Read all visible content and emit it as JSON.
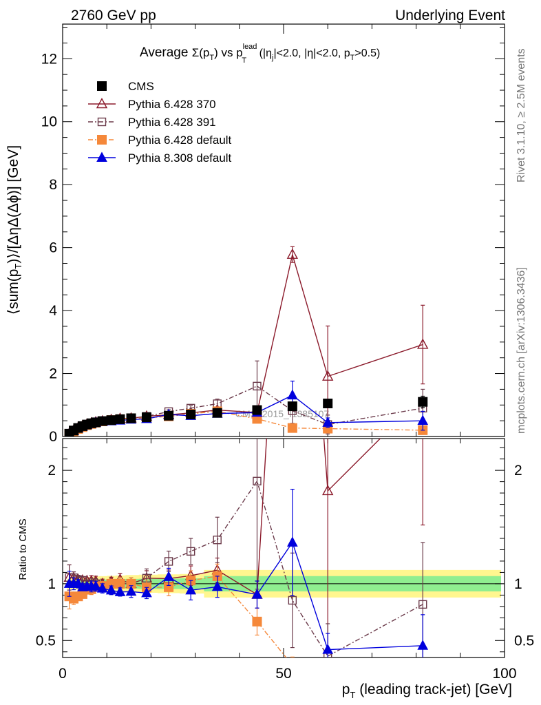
{
  "header": {
    "left": "2760 GeV pp",
    "right": "Underlying Event"
  },
  "title": {
    "prefix": "Average ",
    "sigma": "Σ(p",
    "sub_t": "T",
    "close": ") vs p",
    "sup_lead": "lead",
    "sub_t2": "T",
    "cuts1": " (|η",
    "sub_j": "j",
    "cuts2": "|<2.0, |η|<2.0, p",
    "sub_t3": "T",
    "cuts3": ">0.5)"
  },
  "side_labels": {
    "rivet": "Rivet 3.1.10, ≥ 2.5M events",
    "mcplots": "mcplots.cern.ch [arXiv:1306.3436]"
  },
  "watermark": "CMS_2015_I1385107",
  "legend": [
    {
      "name": "CMS",
      "color": "#000000",
      "marker": "square-filled",
      "dash": ""
    },
    {
      "name": "Pythia 6.428 370",
      "color": "#8b1a2b",
      "marker": "triangle-open",
      "dash": ""
    },
    {
      "name": "Pythia 6.428 391",
      "color": "#6b3a4a",
      "marker": "square-open",
      "dash": "7,3,2,3"
    },
    {
      "name": "Pythia 6.428 default",
      "color": "#f5883a",
      "marker": "square-filled",
      "dash": "7,3,2,3"
    },
    {
      "name": "Pythia 8.308 default",
      "color": "#0000dd",
      "marker": "triangle-filled",
      "dash": ""
    }
  ],
  "chart_data": {
    "type": "line",
    "xlabel_main": "p",
    "xlabel_sub": "T",
    "xlabel_rest": " (leading track-jet) [GeV]",
    "ylabel_main": "⟨sum(p",
    "ylabel_sub": "T",
    "ylabel_rest": ")⟩/[ΔηΔ(Δϕ)] [GeV]",
    "ylabel_ratio": "Ratio to CMS",
    "xlim": [
      0,
      100
    ],
    "ylim": [
      0,
      13.1
    ],
    "ratio_ylim": [
      0.35,
      2.28
    ],
    "x_ticks": [
      "0",
      "50",
      "100"
    ],
    "y_ticks": [
      "0",
      "2",
      "4",
      "6",
      "8",
      "10",
      "12"
    ],
    "ratio_ticks": [
      "0.5",
      "1",
      "2"
    ],
    "x": [
      1.5,
      2.5,
      3.5,
      4.5,
      5.5,
      6.5,
      7.5,
      9,
      11,
      13,
      15.5,
      19,
      24,
      29,
      35,
      44,
      52,
      60,
      81.5
    ],
    "cms": {
      "values": [
        0.09,
        0.19,
        0.27,
        0.33,
        0.38,
        0.42,
        0.45,
        0.49,
        0.52,
        0.55,
        0.58,
        0.61,
        0.66,
        0.7,
        0.75,
        0.84,
        0.96,
        1.05,
        1.1
      ],
      "err": [
        0.01,
        0.01,
        0.02,
        0.02,
        0.02,
        0.02,
        0.03,
        0.03,
        0.03,
        0.03,
        0.03,
        0.04,
        0.05,
        0.05,
        0.06,
        0.08,
        0.12,
        0.14,
        0.18
      ],
      "band_inner": 0.05,
      "band_outer": 0.09
    },
    "series": [
      {
        "name": "Pythia 6.428 370",
        "values": [
          0.095,
          0.2,
          0.28,
          0.34,
          0.39,
          0.43,
          0.46,
          0.49,
          0.53,
          0.57,
          0.58,
          0.64,
          0.69,
          0.75,
          0.84,
          0.76,
          5.78,
          1.91,
          2.92
        ],
        "err": [
          0.01,
          0.01,
          0.01,
          0.01,
          0.01,
          0.02,
          0.02,
          0.02,
          0.02,
          0.03,
          0.03,
          0.04,
          0.05,
          0.06,
          0.08,
          0.1,
          0.25,
          1.6,
          1.25
        ]
      },
      {
        "name": "Pythia 6.428 391",
        "values": [
          0.095,
          0.2,
          0.28,
          0.34,
          0.38,
          0.42,
          0.45,
          0.48,
          0.52,
          0.55,
          0.58,
          0.64,
          0.79,
          0.9,
          1.04,
          1.6,
          0.82,
          0.38,
          0.9
        ],
        "err": [
          0.01,
          0.01,
          0.01,
          0.01,
          0.01,
          0.02,
          0.02,
          0.02,
          0.02,
          0.03,
          0.03,
          0.05,
          0.06,
          0.08,
          0.15,
          0.8,
          0.4,
          0.3,
          0.6
        ]
      },
      {
        "name": "Pythia 6.428 default",
        "values": [
          0.08,
          0.165,
          0.24,
          0.3,
          0.36,
          0.4,
          0.44,
          0.48,
          0.52,
          0.55,
          0.58,
          0.59,
          0.64,
          0.72,
          0.8,
          0.56,
          0.27,
          0.25,
          0.2
        ],
        "err": [
          0.01,
          0.01,
          0.01,
          0.01,
          0.01,
          0.02,
          0.02,
          0.02,
          0.02,
          0.03,
          0.03,
          0.04,
          0.05,
          0.06,
          0.08,
          0.1,
          0.07,
          0.06,
          0.08
        ]
      },
      {
        "name": "Pythia 8.308 default",
        "values": [
          0.09,
          0.19,
          0.27,
          0.32,
          0.37,
          0.41,
          0.44,
          0.47,
          0.49,
          0.51,
          0.54,
          0.56,
          0.7,
          0.66,
          0.73,
          0.76,
          1.31,
          0.44,
          0.5
        ],
        "err": [
          0.01,
          0.01,
          0.01,
          0.01,
          0.01,
          0.02,
          0.02,
          0.02,
          0.02,
          0.02,
          0.03,
          0.03,
          0.05,
          0.06,
          0.07,
          0.1,
          0.45,
          0.15,
          0.3
        ]
      }
    ]
  }
}
